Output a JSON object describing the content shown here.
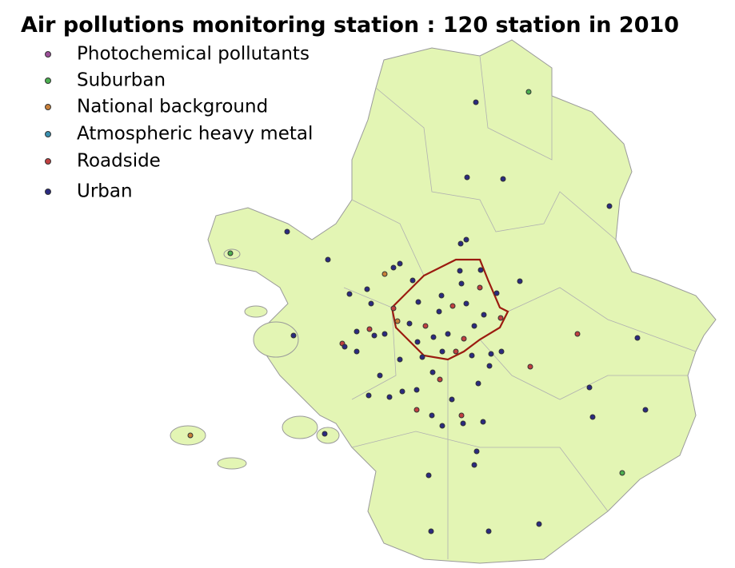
{
  "title": "Air pollutions monitoring station : 120 station in 2010",
  "legend": [
    {
      "label": "Photochemical pollutants",
      "color": "#9c4f98"
    },
    {
      "label": "Suburban",
      "color": "#4caf50"
    },
    {
      "label": "National background",
      "color": "#c8803a"
    },
    {
      "label": "Atmospheric heavy metal",
      "color": "#3a90b0"
    },
    {
      "label": "Roadside",
      "color": "#c04040"
    },
    {
      "label": "Urban",
      "color": "#2a2a80"
    }
  ]
}
